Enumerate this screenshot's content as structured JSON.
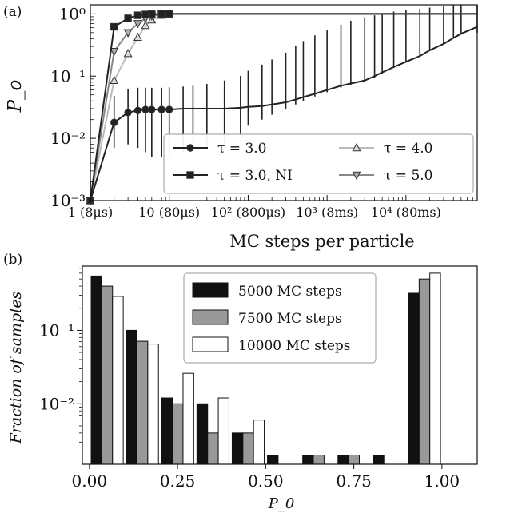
{
  "figure": {
    "panel_a_label": "(a)",
    "panel_b_label": "(b)"
  },
  "chart_data": [
    {
      "panel": "(a)",
      "type": "line",
      "x_scale": "log",
      "y_scale": "log",
      "xlim": [
        1,
        80000
      ],
      "ylim": [
        0.001,
        1.4
      ],
      "xlabel": "MC steps per particle",
      "ylabel": "P_o",
      "xticks": [
        {
          "value": 1,
          "label": "1 (8μs)"
        },
        {
          "value": 10,
          "label": "10 (80μs)"
        },
        {
          "value": 100,
          "label": "10² (800μs)"
        },
        {
          "value": 1000,
          "label": "10³ (8ms)"
        },
        {
          "value": 10000,
          "label": "10⁴ (80ms)"
        }
      ],
      "yticks": [
        {
          "value": 0.001,
          "label": "10⁻³"
        },
        {
          "value": 0.01,
          "label": "10⁻²"
        },
        {
          "value": 0.1,
          "label": "10⁻¹"
        },
        {
          "value": 1,
          "label": "10⁰"
        }
      ],
      "legend_position": "lower-right",
      "grid": false,
      "series": [
        {
          "name": "τ = 3.0",
          "marker": "circle",
          "color": "#222222",
          "x": [
            1,
            2,
            3,
            4,
            5,
            6,
            8,
            10,
            15,
            20,
            30,
            50,
            80,
            100,
            150,
            200,
            300,
            400,
            500,
            700,
            1000,
            1500,
            2000,
            3000,
            4000,
            5000,
            7000,
            10000,
            15000,
            20000,
            30000,
            40000,
            50000,
            80000
          ],
          "y": [
            0.001,
            0.018,
            0.026,
            0.028,
            0.029,
            0.029,
            0.029,
            0.029,
            0.03,
            0.03,
            0.03,
            0.03,
            0.031,
            0.032,
            0.033,
            0.035,
            0.038,
            0.042,
            0.046,
            0.052,
            0.06,
            0.07,
            0.076,
            0.085,
            0.1,
            0.115,
            0.14,
            0.17,
            0.21,
            0.26,
            0.33,
            0.41,
            0.48,
            0.62
          ],
          "yerr_low": [
            0.001,
            0.011,
            0.018,
            0.021,
            0.023,
            0.024,
            0.024,
            0.024,
            0.024,
            0.024,
            0.023,
            0.022,
            0.02,
            0.016,
            0.013,
            0.011,
            0.009,
            0.007,
            0.006,
            0.005,
            0.005,
            0.005,
            0.005,
            0.005,
            0.005,
            0.005,
            0.005,
            0.005,
            0.005,
            0.005,
            0.005,
            0.006,
            0.015,
            0.12
          ],
          "yerr_high": [
            0.001,
            0.03,
            0.036,
            0.037,
            0.036,
            0.036,
            0.036,
            0.037,
            0.038,
            0.04,
            0.045,
            0.055,
            0.07,
            0.09,
            0.12,
            0.15,
            0.2,
            0.26,
            0.32,
            0.4,
            0.5,
            0.6,
            0.7,
            0.8,
            0.85,
            0.9,
            0.95,
            1.0,
            1.0,
            1.0,
            1.0,
            1.0,
            1.0,
            1.0
          ]
        },
        {
          "name": "τ = 3.0, NI",
          "marker": "square",
          "color": "#222222",
          "x": [
            1,
            2,
            3,
            4,
            5,
            6,
            8,
            10,
            20,
            50,
            100,
            1000,
            10000,
            80000
          ],
          "y": [
            0.001,
            0.62,
            0.85,
            0.95,
            0.98,
            0.99,
            1.0,
            1.0,
            1.0,
            1.0,
            1.0,
            1.0,
            1.0,
            1.0
          ]
        },
        {
          "name": "τ = 4.0",
          "marker": "triangle-up",
          "color": "#bbbbbb",
          "x": [
            1,
            2,
            3,
            4,
            5,
            6,
            8,
            10,
            20,
            50,
            100,
            1000,
            10000,
            80000
          ],
          "y": [
            0.001,
            0.085,
            0.23,
            0.42,
            0.65,
            0.8,
            0.95,
            1.0,
            1.0,
            1.0,
            1.0,
            1.0,
            1.0,
            1.0
          ]
        },
        {
          "name": "τ = 5.0",
          "marker": "triangle-down",
          "color": "#888888",
          "x": [
            1,
            2,
            3,
            4,
            5,
            6,
            8,
            10,
            20,
            50,
            100,
            1000,
            10000,
            80000
          ],
          "y": [
            0.001,
            0.25,
            0.5,
            0.7,
            0.85,
            0.93,
            0.98,
            1.0,
            1.0,
            1.0,
            1.0,
            1.0,
            1.0,
            1.0
          ]
        }
      ]
    },
    {
      "panel": "(b)",
      "type": "bar",
      "y_scale": "log",
      "xlim": [
        -0.02,
        1.1
      ],
      "ylim": [
        0.0015,
        0.75
      ],
      "xlabel": "P_0",
      "ylabel": "Fraction of samples",
      "xticks": [
        {
          "value": 0.0,
          "label": "0.00"
        },
        {
          "value": 0.25,
          "label": "0.25"
        },
        {
          "value": 0.5,
          "label": "0.50"
        },
        {
          "value": 0.75,
          "label": "0.75"
        },
        {
          "value": 1.0,
          "label": "1.00"
        }
      ],
      "yticks": [
        {
          "value": 0.01,
          "label": "10⁻²"
        },
        {
          "value": 0.1,
          "label": "10⁻¹"
        }
      ],
      "bin_width": 0.1,
      "bin_starts": [
        0.0,
        0.1,
        0.2,
        0.3,
        0.4,
        0.5,
        0.6,
        0.7,
        0.8,
        0.9
      ],
      "legend_position": "top-center",
      "grid": false,
      "series": [
        {
          "name": "5000 MC steps",
          "color": "#111111",
          "values": [
            0.55,
            0.1,
            0.012,
            0.01,
            0.004,
            0.002,
            0.002,
            0.002,
            0.002,
            0.32
          ]
        },
        {
          "name": "7500 MC steps",
          "color": "#999999",
          "values": [
            0.4,
            0.071,
            0.01,
            0.004,
            0.004,
            0,
            0.002,
            0.002,
            0,
            0.5
          ]
        },
        {
          "name": "10000 MC steps",
          "color": "#ffffff",
          "values": [
            0.29,
            0.065,
            0.026,
            0.012,
            0.006,
            0,
            0,
            0,
            0,
            0.6
          ]
        }
      ]
    }
  ]
}
